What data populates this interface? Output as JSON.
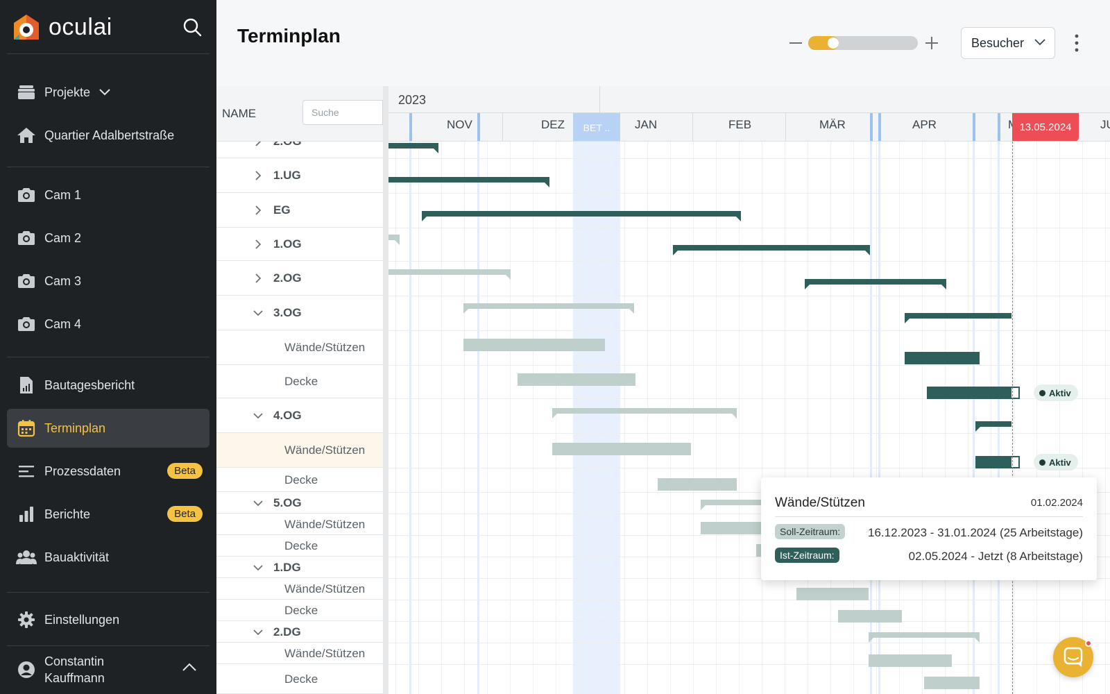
{
  "brand": {
    "name": "oculai"
  },
  "sidebar": {
    "items": [
      {
        "label": "Projekte",
        "icon": "folder-stack-icon"
      },
      {
        "label": "Quartier Adalbertstraße",
        "icon": "home-icon"
      },
      {
        "label": "Cam 1",
        "icon": "camera-icon"
      },
      {
        "label": "Cam 2",
        "icon": "camera-icon"
      },
      {
        "label": "Cam 3",
        "icon": "camera-icon"
      },
      {
        "label": "Cam 4",
        "icon": "camera-icon"
      },
      {
        "label": "Bautagesbericht",
        "icon": "report-icon"
      },
      {
        "label": "Terminplan",
        "icon": "calendar-icon"
      },
      {
        "label": "Prozessdaten",
        "icon": "process-lines-icon",
        "badge": "Beta"
      },
      {
        "label": "Berichte",
        "icon": "bar-chart-icon",
        "badge": "Beta"
      },
      {
        "label": "Bauaktivität",
        "icon": "people-icon"
      },
      {
        "label": "Einstellungen",
        "icon": "gear-icon"
      }
    ],
    "user": {
      "first": "Constantin",
      "last": "Kauffmann"
    },
    "accent": "#f5c242"
  },
  "header": {
    "title": "Terminplan",
    "zoom_level": 0.18,
    "zoom_minus": "—",
    "zoom_plus": "+",
    "role": "Besucher"
  },
  "names": {
    "header": "NAME",
    "search_placeholder": "Suche",
    "rows": [
      {
        "label": "2.OG",
        "kind": "group",
        "caret": "right"
      },
      {
        "label": "1.UG",
        "kind": "group",
        "caret": "right"
      },
      {
        "label": "EG",
        "kind": "group",
        "caret": "right"
      },
      {
        "label": "1.OG",
        "kind": "group",
        "caret": "right"
      },
      {
        "label": "2.OG",
        "kind": "group",
        "caret": "right"
      },
      {
        "label": "3.OG",
        "kind": "group",
        "caret": "down"
      },
      {
        "label": "Wände/Stützen",
        "kind": "sub"
      },
      {
        "label": "Decke",
        "kind": "sub"
      },
      {
        "label": "4.OG",
        "kind": "group",
        "caret": "down"
      },
      {
        "label": "Wände/Stützen",
        "kind": "sub",
        "highlight": true
      },
      {
        "label": "Decke",
        "kind": "sub"
      },
      {
        "label": "5.OG",
        "kind": "group",
        "caret": "down"
      },
      {
        "label": "Wände/Stützen",
        "kind": "sub"
      },
      {
        "label": "Decke",
        "kind": "sub"
      },
      {
        "label": "1.DG",
        "kind": "group",
        "caret": "down"
      },
      {
        "label": "Wände/Stützen",
        "kind": "sub"
      },
      {
        "label": "Decke",
        "kind": "sub"
      },
      {
        "label": "2.DG",
        "kind": "group",
        "caret": "down"
      },
      {
        "label": "Wände/Stützen",
        "kind": "sub"
      },
      {
        "label": "Decke",
        "kind": "sub"
      }
    ]
  },
  "timeline": {
    "year": "2023",
    "months": [
      "NOV",
      "DEZ",
      "JAN",
      "FEB",
      "MÄR",
      "APR",
      "M",
      "JU"
    ],
    "holiday_label": "BET ..",
    "today_label": "13.05.2024",
    "status_label": "Aktiv"
  },
  "tooltip": {
    "title": "Wände/Stützen",
    "date": "01.02.2024",
    "soll_label": "Soll-Zeitraum:",
    "soll_value": "16.12.2023 - 31.01.2024 (25 Arbeitstage)",
    "ist_label": "Ist-Zeitraum:",
    "ist_value": "02.05.2024 - Jetzt (8 Arbeitstage)"
  },
  "colors": {
    "planned": "#bfcfcb",
    "actual": "#2f5f5b",
    "today": "#ef4d55"
  },
  "chat": {
    "icon": "chat-icon"
  }
}
